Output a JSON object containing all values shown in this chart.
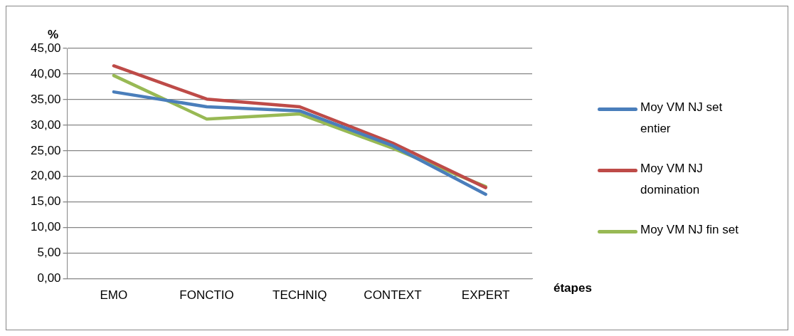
{
  "chart_data": {
    "type": "line",
    "ylabel": "%",
    "xlabel": "étapes",
    "categories": [
      "EMO",
      "FONCTIO",
      "TECHNIQ",
      "CONTEXT",
      "EXPERT"
    ],
    "series": [
      {
        "name": "Moy VM NJ set entier",
        "color": "#4a7ebb",
        "values": [
          36.5,
          33.6,
          32.8,
          26.0,
          16.5
        ]
      },
      {
        "name": "Moy VM NJ domination",
        "color": "#be4b48",
        "values": [
          41.6,
          35.1,
          33.6,
          26.5,
          17.8
        ]
      },
      {
        "name": "Moy VM NJ fin set",
        "color": "#98b954",
        "values": [
          39.7,
          31.2,
          32.2,
          25.5,
          18.0
        ]
      }
    ],
    "ylim": [
      0,
      45
    ],
    "yticks": [
      {
        "value": 0,
        "label": "0,00"
      },
      {
        "value": 5,
        "label": "5,00"
      },
      {
        "value": 10,
        "label": "10,00"
      },
      {
        "value": 15,
        "label": "15,00"
      },
      {
        "value": 20,
        "label": "20,00"
      },
      {
        "value": 25,
        "label": "25,00"
      },
      {
        "value": 30,
        "label": "30,00"
      },
      {
        "value": 35,
        "label": "35,00"
      },
      {
        "value": 40,
        "label": "40,00"
      },
      {
        "value": 45,
        "label": "45,00"
      }
    ],
    "grid": "y",
    "legend": "right",
    "marker": "none",
    "line_style": "solid"
  }
}
